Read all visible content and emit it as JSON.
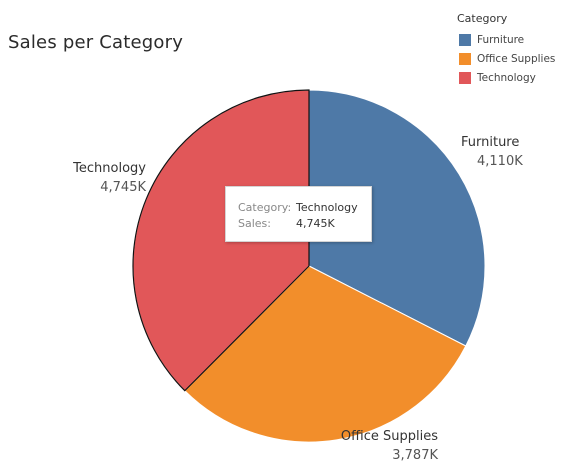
{
  "title": "Sales per Category",
  "legend": {
    "title": "Category",
    "items": [
      {
        "label": "Furniture",
        "color": "#4e79a7"
      },
      {
        "label": "Office Supplies",
        "color": "#f28e2b"
      },
      {
        "label": "Technology",
        "color": "#e15759"
      }
    ]
  },
  "tooltip": {
    "category_key": "Category:",
    "category_value": "Technology",
    "sales_key": "Sales:",
    "sales_value": "4,745K"
  },
  "chart_data": {
    "type": "pie",
    "title": "Sales per Category",
    "categories": [
      "Furniture",
      "Office Supplies",
      "Technology"
    ],
    "values": [
      4110,
      3787,
      4745
    ],
    "value_labels": [
      "4,110K",
      "3,787K",
      "4,745K"
    ],
    "colors": [
      "#4e79a7",
      "#f28e2b",
      "#e15759"
    ],
    "start_angle": "12 o'clock",
    "direction": "clockwise",
    "highlighted": "Technology",
    "legend_position": "top-right"
  }
}
